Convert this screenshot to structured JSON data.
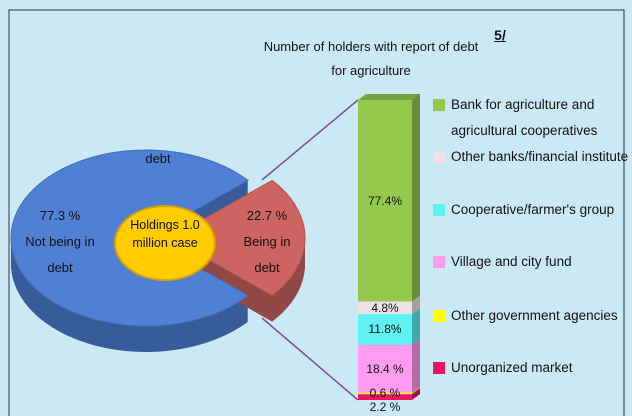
{
  "chart_data": [
    {
      "type": "pie",
      "title": "debt",
      "categories": [
        "Not being in debt",
        "Being in debt"
      ],
      "values": [
        77.3,
        22.7
      ],
      "value_labels": [
        "77.3 %",
        "22.7 %"
      ],
      "colors": [
        "#4f80d6",
        "#cc6462"
      ],
      "annotation": "Holdings 1.0 million case"
    },
    {
      "type": "stacked_bar",
      "title": "Number of holders with report of debt for agriculture",
      "footnote": "5/",
      "series": [
        {
          "name": "Bank for agriculture and agricultural cooperatives",
          "color": "#94c94c",
          "values": [
            77.4
          ],
          "value_labels": [
            "77.4%"
          ]
        },
        {
          "name": "Other banks/financial institute",
          "color": "#f0e2e4",
          "values": [
            4.8
          ],
          "value_labels": [
            "4.8%"
          ]
        },
        {
          "name": "Cooperative/farmer's group",
          "color": "#5ef2f2",
          "values": [
            11.8
          ],
          "value_labels": [
            "11.8%"
          ]
        },
        {
          "name": "Village and city fund",
          "color": "#ff9cf0",
          "values": [
            18.4
          ],
          "value_labels": [
            "18.4 %"
          ]
        },
        {
          "name": "Other government agencies",
          "color": "#ffff00",
          "values": [
            0.6
          ],
          "value_labels": [
            "0.6 %"
          ]
        },
        {
          "name": "Unorganized market",
          "color": "#ee1166",
          "values": [
            2.2
          ],
          "value_labels": [
            "2.2 %"
          ]
        }
      ]
    }
  ]
}
